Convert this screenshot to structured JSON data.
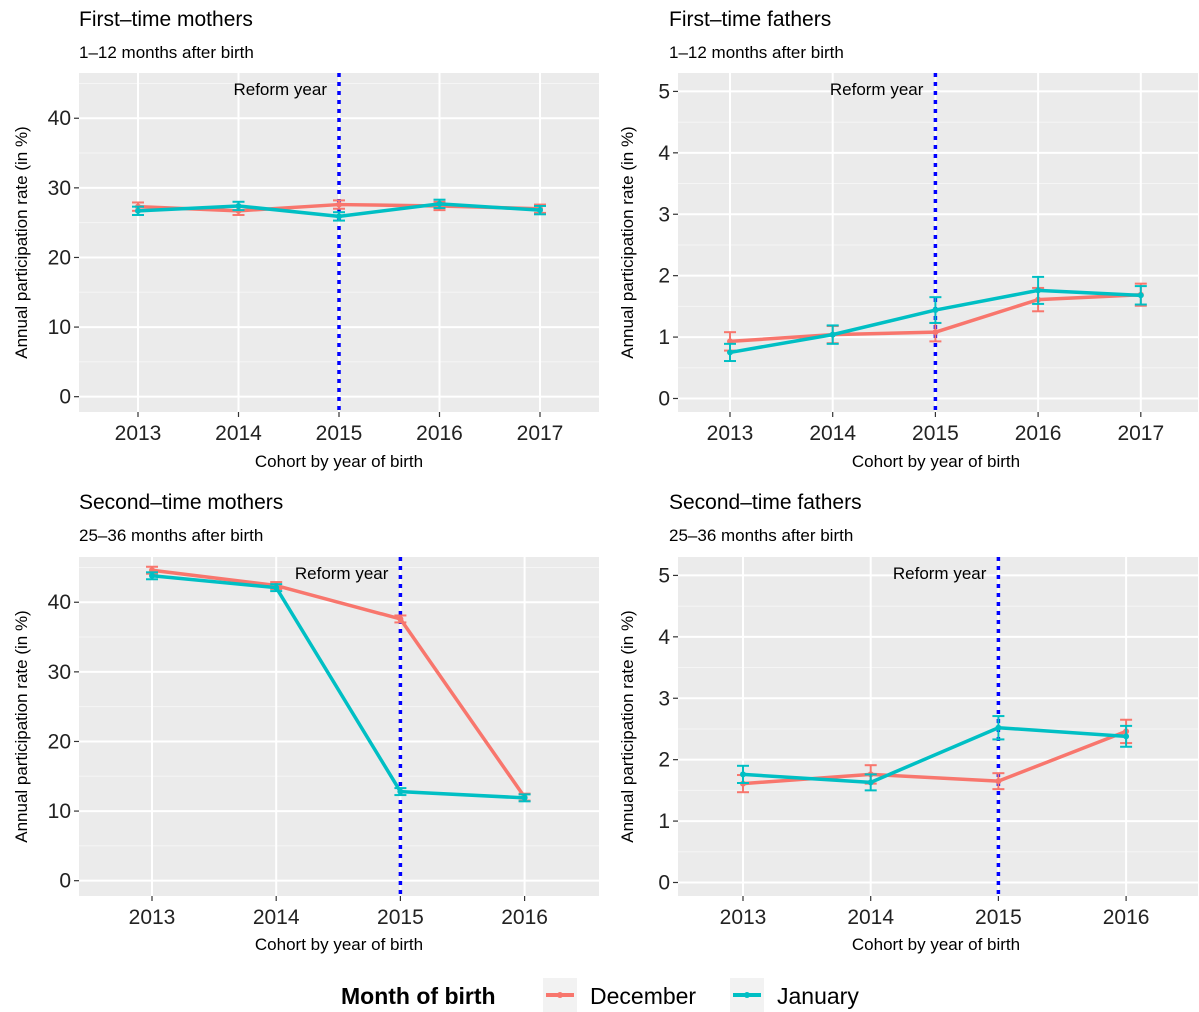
{
  "legend": {
    "title": "Month of birth",
    "items": [
      {
        "label": "December",
        "color": "#F8766D"
      },
      {
        "label": "January",
        "color": "#00BFC4"
      }
    ]
  },
  "chart_data": [
    {
      "type": "line",
      "title": "First–time mothers",
      "subtitle": "1–12 months after birth",
      "xlabel": "Cohort by year of birth",
      "ylabel": "Annual participation rate (in %)",
      "categories": [
        "2013",
        "2014",
        "2015",
        "2016",
        "2017"
      ],
      "yticks": [
        0,
        10,
        20,
        30,
        40
      ],
      "ylim": [
        -2.2,
        46.5
      ],
      "reform_year": "2015",
      "reform_label": "Reform year",
      "series": [
        {
          "name": "December",
          "color": "#F8766D",
          "values": [
            27.3,
            26.7,
            27.6,
            27.4,
            27.0
          ],
          "err": [
            0.6,
            0.6,
            0.6,
            0.6,
            0.6
          ]
        },
        {
          "name": "January",
          "color": "#00BFC4",
          "values": [
            26.7,
            27.4,
            25.9,
            27.7,
            26.8
          ],
          "err": [
            0.6,
            0.6,
            0.6,
            0.6,
            0.6
          ]
        }
      ]
    },
    {
      "type": "line",
      "title": "First–time fathers",
      "subtitle": "1–12 months after birth",
      "xlabel": "Cohort by year of birth",
      "ylabel": "Annual participation rate (in %)",
      "categories": [
        "2013",
        "2014",
        "2015",
        "2016",
        "2017"
      ],
      "yticks": [
        0,
        1,
        2,
        3,
        4,
        5
      ],
      "ylim": [
        -0.22,
        5.3
      ],
      "reform_year": "2015",
      "reform_label": "Reform year",
      "series": [
        {
          "name": "December",
          "color": "#F8766D",
          "values": [
            0.93,
            1.04,
            1.08,
            1.61,
            1.69
          ],
          "err": [
            0.15,
            0.14,
            0.15,
            0.19,
            0.18
          ]
        },
        {
          "name": "January",
          "color": "#00BFC4",
          "values": [
            0.75,
            1.04,
            1.44,
            1.76,
            1.68
          ],
          "err": [
            0.14,
            0.15,
            0.21,
            0.22,
            0.15
          ]
        }
      ]
    },
    {
      "type": "line",
      "title": "Second–time mothers",
      "subtitle": "25–36 months after birth",
      "xlabel": "Cohort by year of birth",
      "ylabel": "Annual participation rate (in %)",
      "categories": [
        "2013",
        "2014",
        "2015",
        "2016"
      ],
      "yticks": [
        0,
        10,
        20,
        30,
        40
      ],
      "ylim": [
        -2.2,
        46.5
      ],
      "reform_year": "2015",
      "reform_label": "Reform year",
      "series": [
        {
          "name": "December",
          "color": "#F8766D",
          "values": [
            44.6,
            42.4,
            37.6,
            12.0
          ],
          "err": [
            0.5,
            0.5,
            0.5,
            0.5
          ]
        },
        {
          "name": "January",
          "color": "#00BFC4",
          "values": [
            43.8,
            42.1,
            12.8,
            11.9
          ],
          "err": [
            0.5,
            0.5,
            0.5,
            0.5
          ]
        }
      ]
    },
    {
      "type": "line",
      "title": "Second–time fathers",
      "subtitle": "25–36 months after birth",
      "xlabel": "Cohort by year of birth",
      "ylabel": "Annual participation rate (in %)",
      "categories": [
        "2013",
        "2014",
        "2015",
        "2016"
      ],
      "yticks": [
        0,
        1,
        2,
        3,
        4,
        5
      ],
      "ylim": [
        -0.22,
        5.3
      ],
      "reform_year": "2015",
      "reform_label": "Reform year",
      "series": [
        {
          "name": "December",
          "color": "#F8766D",
          "values": [
            1.61,
            1.76,
            1.65,
            2.46
          ],
          "err": [
            0.14,
            0.15,
            0.13,
            0.19
          ]
        },
        {
          "name": "January",
          "color": "#00BFC4",
          "values": [
            1.76,
            1.63,
            2.52,
            2.38
          ],
          "err": [
            0.14,
            0.13,
            0.19,
            0.17
          ]
        }
      ]
    }
  ]
}
